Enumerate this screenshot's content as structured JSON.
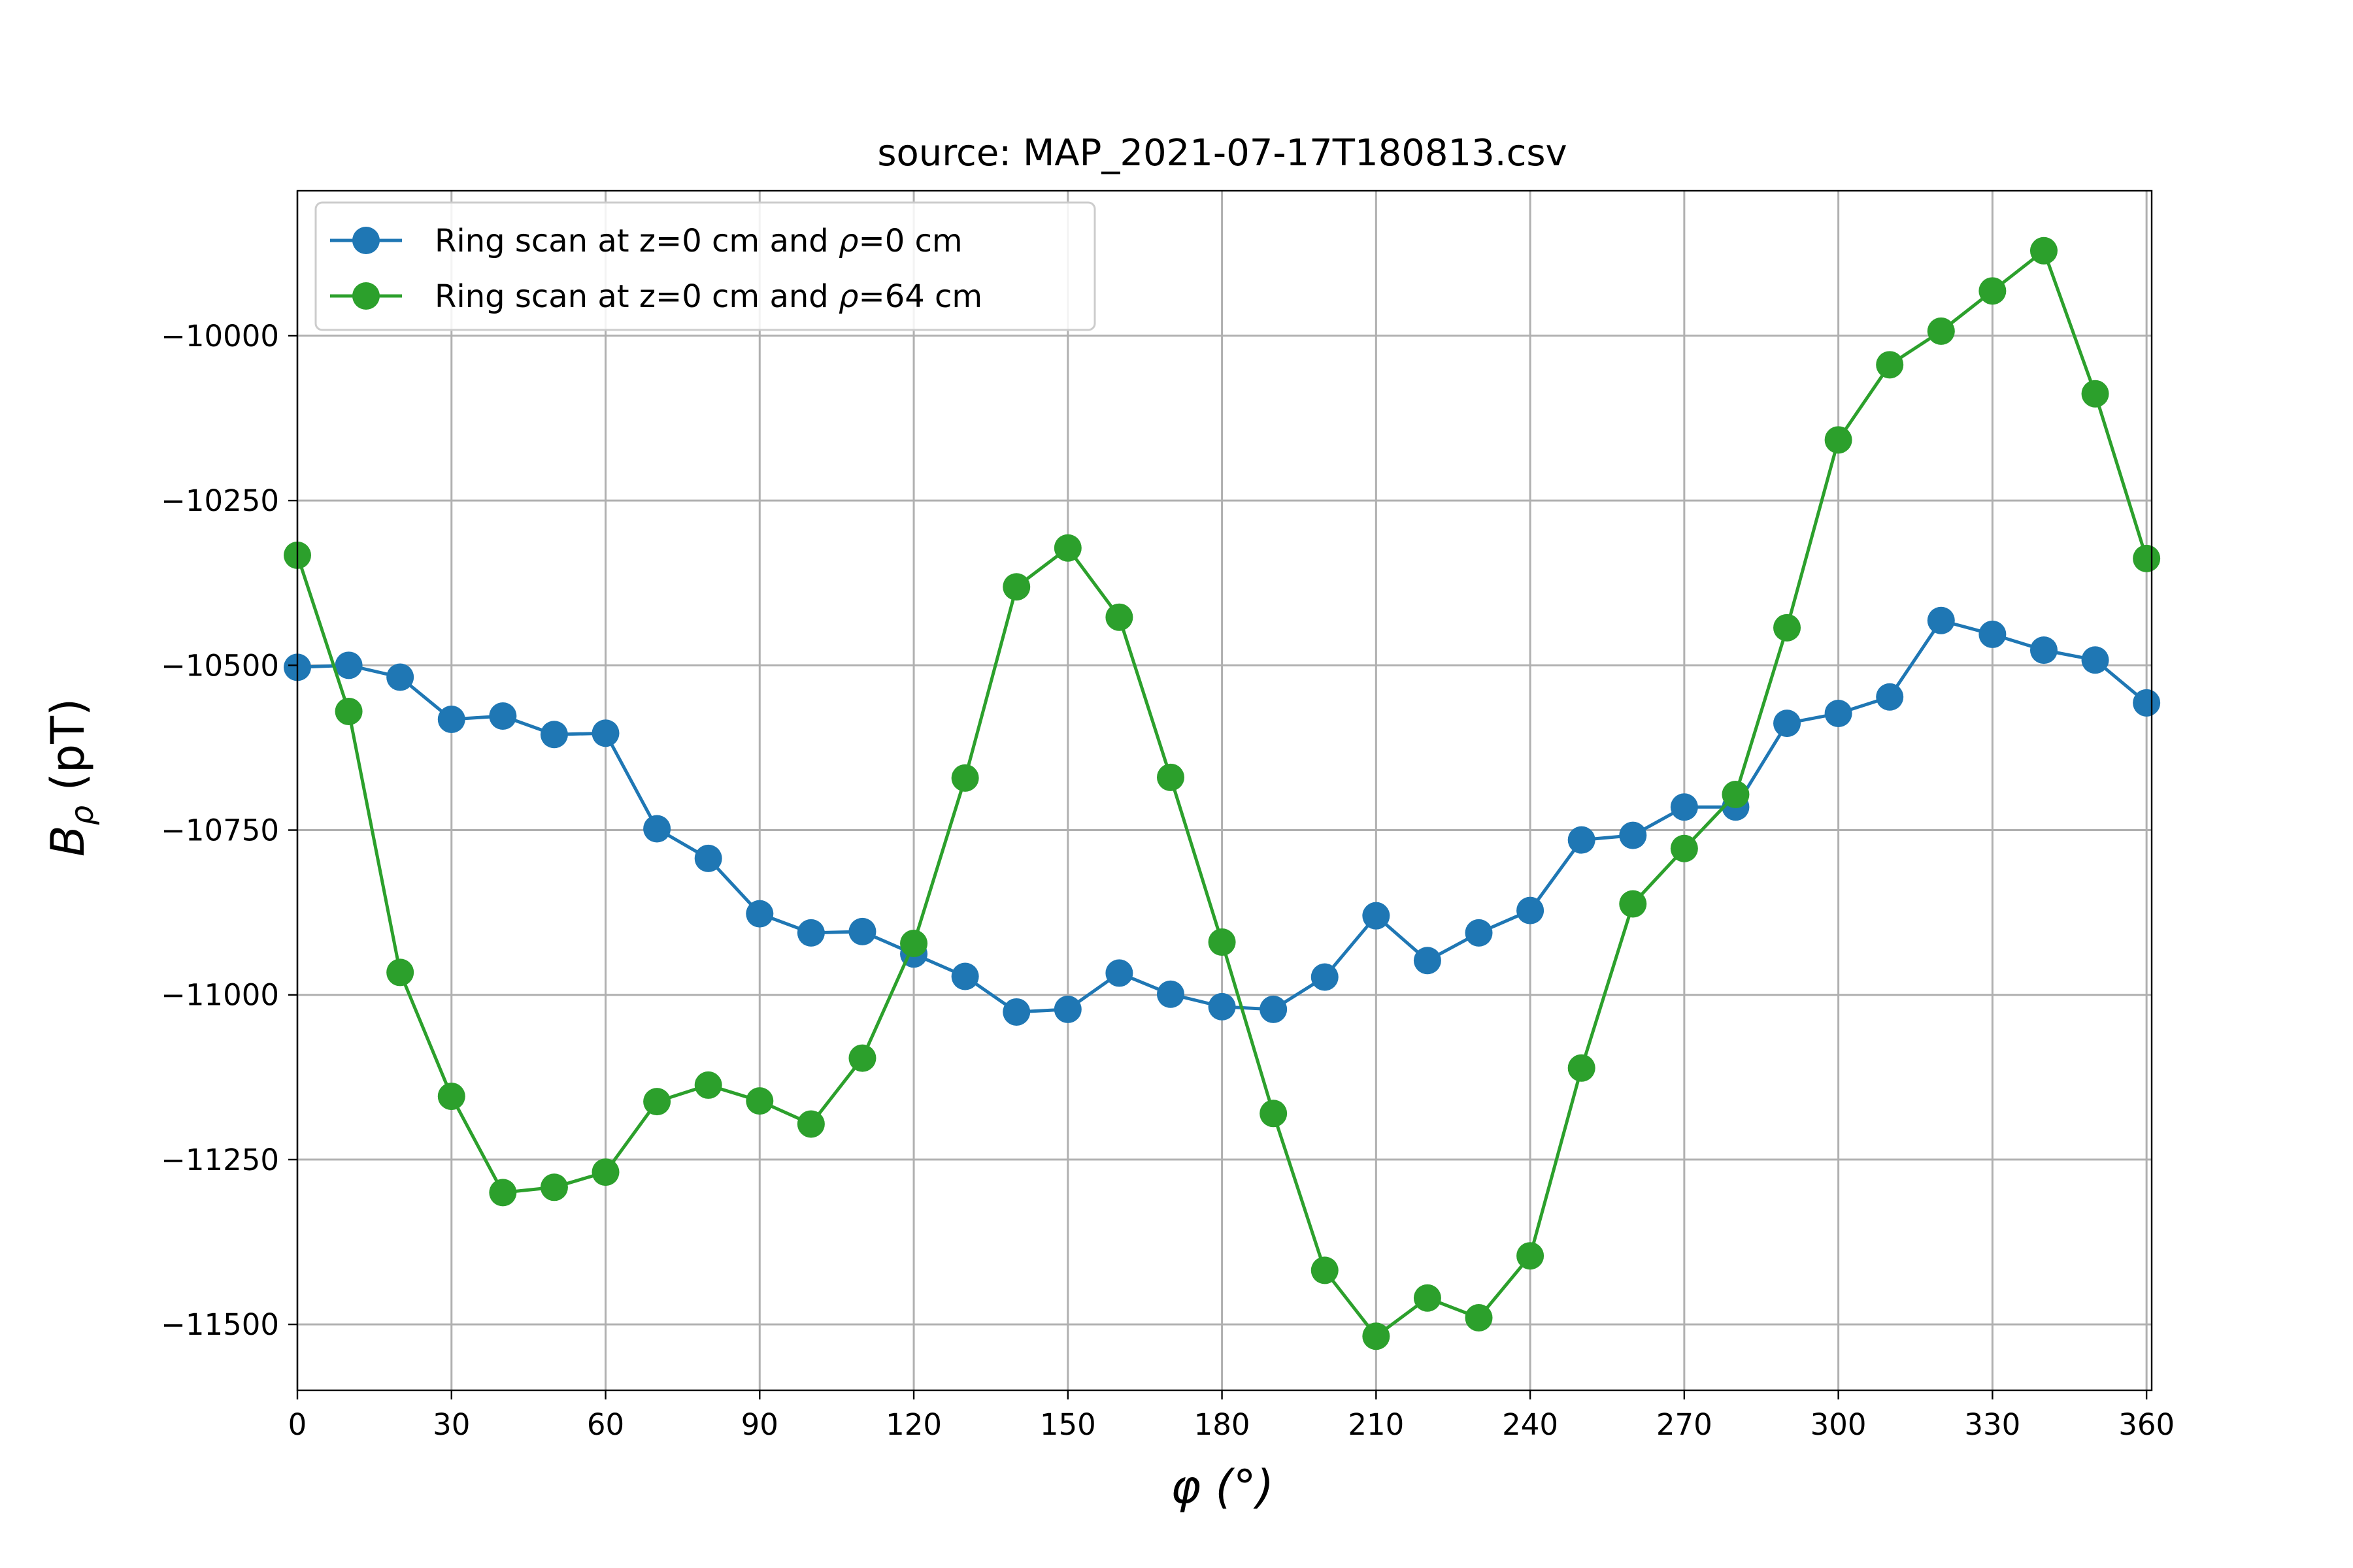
{
  "chart_data": {
    "type": "line",
    "title": "source: MAP_2021-07-17T180813.csv",
    "xlabel": "φ (°)",
    "ylabel": {
      "main": "B",
      "sub": "ρ",
      "unit": " (pT)"
    },
    "xlim": [
      0,
      361
    ],
    "ylim": [
      -11600,
      -9780
    ],
    "xticks": [
      0,
      30,
      60,
      90,
      120,
      150,
      180,
      210,
      240,
      270,
      300,
      330,
      360
    ],
    "xtick_labels": [
      "0",
      "30",
      "60",
      "90",
      "120",
      "150",
      "180",
      "210",
      "240",
      "270",
      "300",
      "330",
      "360"
    ],
    "yticks": [
      -10000,
      -10250,
      -10500,
      -10750,
      -11000,
      -11250,
      -11500
    ],
    "ytick_labels": [
      "−10000",
      "−10250",
      "−10500",
      "−10750",
      "−11000",
      "−11250",
      "−11500"
    ],
    "grid": true,
    "legend_position": "upper-left",
    "x": [
      0,
      10,
      20,
      30,
      40,
      50,
      60,
      70,
      80,
      90,
      100,
      110,
      120,
      130,
      140,
      150,
      160,
      170,
      180,
      190,
      200,
      210,
      220,
      230,
      240,
      250,
      260,
      270,
      280,
      290,
      300,
      310,
      320,
      330,
      340,
      350,
      360
    ],
    "series": [
      {
        "name": "Ring scan at z=0 cm and ρ=0 cm",
        "legend_prefix": "Ring scan at z=0 cm and ",
        "legend_symbol": "ρ",
        "legend_suffix": "=0 cm",
        "color": "#1f77b4",
        "values": [
          -10503,
          -10500,
          -10518,
          -10582,
          -10577,
          -10605,
          -10603,
          -10748,
          -10793,
          -10877,
          -10906,
          -10904,
          -10938,
          -10972,
          -11026,
          -11022,
          -10967,
          -10999,
          -11018,
          -11022,
          -10973,
          -10880,
          -10948,
          -10906,
          -10872,
          -10765,
          -10758,
          -10715,
          -10715,
          -10588,
          -10573,
          -10548,
          -10432,
          -10453,
          -10477,
          -10492,
          -10557
        ]
      },
      {
        "name": "Ring scan at z=0 cm and ρ=64 cm",
        "legend_prefix": "Ring scan at z=0 cm and ",
        "legend_symbol": "ρ",
        "legend_suffix": "=64 cm",
        "color": "#2ca02c",
        "values": [
          -10333,
          -10570,
          -10966,
          -11154,
          -11300,
          -11292,
          -11269,
          -11162,
          -11137,
          -11161,
          -11196,
          -11096,
          -10922,
          -10671,
          -10381,
          -10322,
          -10427,
          -10670,
          -10920,
          -11180,
          -11418,
          -11518,
          -11460,
          -11490,
          -11396,
          -11111,
          -10862,
          -10778,
          -10696,
          -10443,
          -10158,
          -10044,
          -9993,
          -9932,
          -9871,
          -10088,
          -10338
        ]
      }
    ]
  }
}
